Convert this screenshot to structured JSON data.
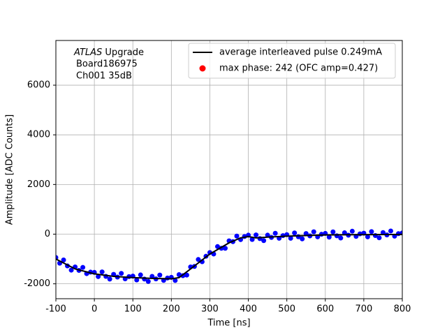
{
  "chart_data": {
    "type": "scatter",
    "xlabel": "Time [ns]",
    "ylabel": "Amplitude [ADC Counts]",
    "annotation": {
      "experiment": "ATLAS",
      "line1": "Upgrade",
      "line2": "Board186975",
      "line3": "Ch001 35dB"
    },
    "xlim": [
      -100,
      800
    ],
    "ylim": [
      -2600,
      7800
    ],
    "xticks": [
      -100,
      0,
      100,
      200,
      300,
      400,
      500,
      600,
      700,
      800
    ],
    "yticks": [
      -2000,
      0,
      2000,
      4000,
      6000
    ],
    "grid": true,
    "legend": "upper right",
    "points": {
      "color": "#0000ff",
      "x": [
        -100,
        -90,
        -80,
        -70,
        -60,
        -50,
        -40,
        -30,
        -20,
        -10,
        0,
        10,
        20,
        30,
        40,
        50,
        60,
        70,
        80,
        90,
        100,
        110,
        120,
        130,
        140,
        150,
        160,
        170,
        180,
        190,
        200,
        210,
        220,
        230,
        240,
        250,
        260,
        270,
        280,
        290,
        300,
        310,
        320,
        330,
        340,
        350,
        360,
        370,
        380,
        390,
        400,
        410,
        420,
        430,
        440,
        450,
        460,
        470,
        480,
        490,
        500,
        510,
        520,
        530,
        540,
        550,
        560,
        570,
        580,
        590,
        600,
        610,
        620,
        630,
        640,
        650,
        660,
        670,
        680,
        690,
        700,
        710,
        720,
        730,
        740,
        750,
        760,
        770,
        780,
        790,
        800
      ],
      "values": [
        -940,
        -1170,
        -1040,
        -1280,
        -1450,
        -1320,
        -1460,
        -1340,
        -1590,
        -1530,
        -1540,
        -1710,
        -1520,
        -1700,
        -1810,
        -1620,
        -1730,
        -1580,
        -1800,
        -1710,
        -1690,
        -1846,
        -1642,
        -1808,
        -1904,
        -1700,
        -1804,
        -1648,
        -1862,
        -1766,
        -1740,
        -1865,
        -1630,
        -1673,
        -1647,
        -1320,
        -1300,
        -1020,
        -1110,
        -890,
        -740,
        -800,
        -500,
        -570,
        -570,
        -270,
        -303,
        -77,
        -220,
        -95,
        -40,
        -215,
        -30,
        -180,
        -260,
        -40,
        -132,
        36,
        -166,
        -58,
        -20,
        -165,
        50,
        -105,
        -190,
        25,
        -70,
        95,
        -110,
        -5,
        30,
        -119,
        92,
        -67,
        -156,
        55,
        -43,
        118,
        -90,
        12,
        40,
        -109,
        102,
        -57,
        -146,
        65,
        -33,
        128,
        -80,
        21,
        50
      ]
    },
    "series": [
      {
        "name": "average interleaved pulse 0.249mA",
        "color": "#000000",
        "kind": "line",
        "x": [
          -100,
          -50,
          0,
          50,
          100,
          150,
          200,
          220,
          250,
          300,
          350,
          380,
          400,
          420,
          450,
          500,
          600,
          700,
          800
        ],
        "values": [
          -1000,
          -1400,
          -1600,
          -1700,
          -1750,
          -1780,
          -1800,
          -1750,
          -1400,
          -800,
          -350,
          -150,
          -100,
          -150,
          -120,
          -80,
          -30,
          -20,
          -10
        ]
      },
      {
        "name": "max phase: 242 (OFC amp=0.427)",
        "color": "#ff0000",
        "kind": "point",
        "x": [],
        "values": []
      }
    ]
  }
}
